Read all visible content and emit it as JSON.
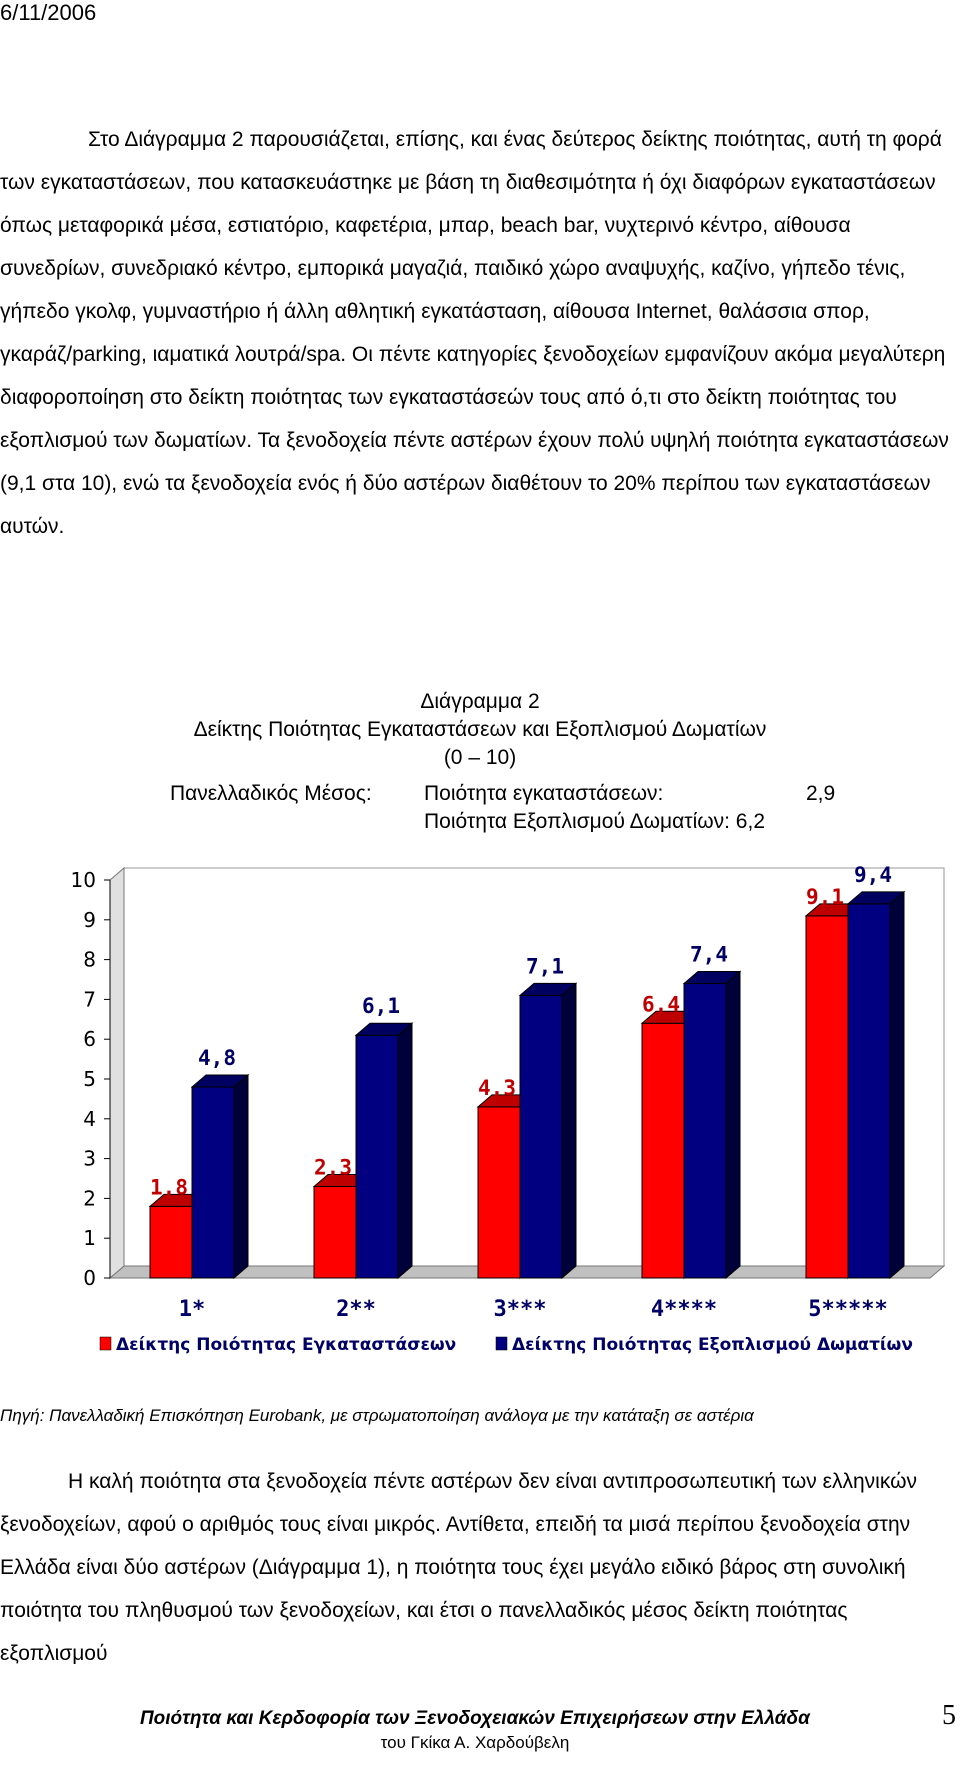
{
  "header": {
    "date": "6/11/2006"
  },
  "paragraph1": "Στο Διάγραμμα 2 παρουσιάζεται, επίσης, και ένας δεύτερος δείκτης ποιότητας, αυτή τη φορά των εγκαταστάσεων, που κατασκευάστηκε με βάση τη διαθεσιμότητα ή όχι διαφόρων εγκαταστάσεων όπως μεταφορικά μέσα, εστιατόριο, καφετέρια, μπαρ, beach bar, νυχτερινό κέντρο, αίθουσα συνεδρίων, συνεδριακό κέντρο, εμπορικά μαγαζιά, παιδικό χώρο αναψυχής, καζίνο, γήπεδο τένις, γήπεδο γκολφ, γυμναστήριο ή άλλη αθλητική εγκατάσταση, αίθουσα Internet, θαλάσσια σπορ, γκαράζ/parking, ιαματικά λουτρά/spa. Οι πέντε κατηγορίες ξενοδοχείων εμφανίζουν ακόμα μεγαλύτερη διαφοροποίηση στο δείκτη ποιότητας των εγκαταστάσεών τους από ό,τι στο δείκτη ποιότητας του εξοπλισμού των δωματίων. Τα ξενοδοχεία πέντε αστέρων έχουν πολύ υψηλή ποιότητα εγκαταστάσεων (9,1 στα 10), ενώ τα ξενοδοχεία ενός ή δύο αστέρων διαθέτουν το 20% περίπου των εγκαταστάσεων αυτών.",
  "chart_heading": {
    "line1": "Διάγραμμα 2",
    "line2": "Δείκτης Ποιότητας Εγκαταστάσεων και Εξοπλισμού Δωματίων",
    "line3": "(0 – 10)",
    "avg_label": "Πανελλαδικός Μέσος:",
    "avg1_label": "Ποιότητα εγκαταστάσεων:",
    "avg1_value": "2,9",
    "avg2_text": "Ποιότητα Εξοπλισμού Δωματίων: 6,2"
  },
  "chart_data": {
    "type": "bar",
    "categories": [
      "1*",
      "2**",
      "3***",
      "4****",
      "5*****"
    ],
    "series": [
      {
        "name": "Δείκτης Ποιότητας Εγκαταστάσεων",
        "values": [
          1.8,
          2.3,
          4.3,
          6.4,
          9.1
        ],
        "labels": [
          "1,8",
          "2,3",
          "4,3",
          "6,4",
          "9,1"
        ],
        "color": "#ff0000",
        "label_color": "#c00000"
      },
      {
        "name": "Δείκτης Ποιότητας Εξοπλισμού Δωματίων",
        "values": [
          4.8,
          6.1,
          7.1,
          7.4,
          9.4
        ],
        "labels": [
          "4,8",
          "6,1",
          "7,1",
          "7,4",
          "9,4"
        ],
        "color": "#000080",
        "label_color": "#000066"
      }
    ],
    "yticks": [
      "0",
      "1",
      "2",
      "3",
      "4",
      "5",
      "6",
      "7",
      "8",
      "9",
      "10"
    ],
    "ylim": [
      0,
      10
    ],
    "grid": false,
    "legend": "bottom"
  },
  "source": "Πηγή: Πανελλαδική Επισκόπηση Eurobank, με στρωματοποίηση ανάλογα με την κατάταξη σε αστέρια",
  "paragraph2": "Η καλή ποιότητα στα ξενοδοχεία πέντε αστέρων δεν είναι αντιπροσωπευτική των ελληνικών ξενοδοχείων, αφού ο αριθμός τους είναι μικρός. Αντίθετα, επειδή τα μισά περίπου ξενοδοχεία στην Ελλάδα είναι δύο αστέρων (Διάγραμμα 1), η ποιότητα τους έχει μεγάλο ειδικό βάρος στη συνολική ποιότητα του πληθυσμού των ξενοδοχείων, και έτσι ο πανελλαδικός μέσος δείκτη ποιότητας εξοπλισμού",
  "footer": {
    "title": "Ποιότητα και Κερδοφορία των Ξενοδοχειακών Επιχειρήσεων στην Ελλάδα",
    "author": "του Γκίκα Α. Χαρδούβελη",
    "page": "5"
  }
}
